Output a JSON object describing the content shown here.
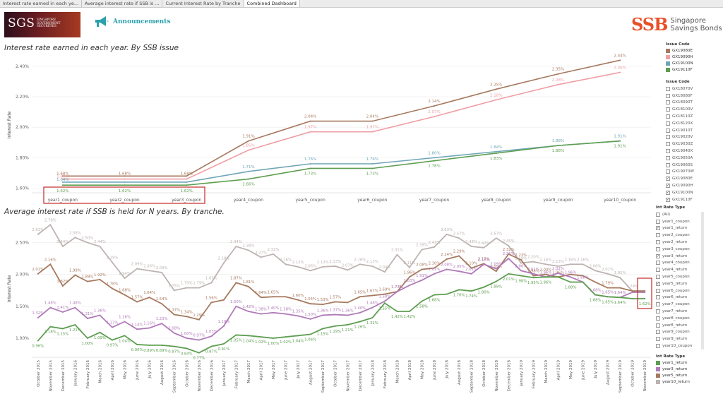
{
  "tabs": [
    "Interest rate earned in each ye...",
    "Average interest rate if SSB is ...",
    "Current Interest Rate by Tranche",
    "Combined Dashboard"
  ],
  "header": {
    "sgs_logo": "SGS",
    "sgs_sub": "SINGAPORE GOVERNMENT SECURITIES",
    "announcements": "Announcements",
    "ssb_mark": "SSB",
    "ssb_line1": "Singapore",
    "ssb_line2": "Savings Bonds"
  },
  "chart1": {
    "title": "Interest rate earned in each year. By SSB issue",
    "ylabel": "Interest Rate"
  },
  "chart2": {
    "title": "Average interest rate if SSB is held for N years. By tranche.",
    "ylabel": "Interest Rate"
  },
  "legend1": {
    "title": "Issue Code",
    "items": [
      {
        "label": "GX19080E",
        "color": "#a6795e"
      },
      {
        "label": "GX19090H",
        "color": "#ef9fa5"
      },
      {
        "label": "GX19100N",
        "color": "#6fa6b7"
      },
      {
        "label": "GX19110F",
        "color": "#5d9e50"
      }
    ]
  },
  "filter1": {
    "title": "Issue Code",
    "items": [
      {
        "label": "GX18070V",
        "checked": false
      },
      {
        "label": "GX18080F",
        "checked": false
      },
      {
        "label": "GX18090T",
        "checked": false
      },
      {
        "label": "GX18100V",
        "checked": false
      },
      {
        "label": "GX18110Z",
        "checked": false
      },
      {
        "label": "GX18120X",
        "checked": false
      },
      {
        "label": "GX19010T",
        "checked": false
      },
      {
        "label": "GX19020V",
        "checked": false
      },
      {
        "label": "GX19030Z",
        "checked": false
      },
      {
        "label": "GX19040X",
        "checked": false
      },
      {
        "label": "GX19050A",
        "checked": false
      },
      {
        "label": "GX19060S",
        "checked": false
      },
      {
        "label": "GX19070W",
        "checked": false
      },
      {
        "label": "GX19080E",
        "checked": true
      },
      {
        "label": "GX19090H",
        "checked": true
      },
      {
        "label": "GX19100N",
        "checked": true
      },
      {
        "label": "GX19110F",
        "checked": true
      }
    ]
  },
  "filter2": {
    "title": "Int Rate Type",
    "items": [
      {
        "label": "(All)",
        "checked": false
      },
      {
        "label": "year1_coupon",
        "checked": false
      },
      {
        "label": "year1_return",
        "checked": true
      },
      {
        "label": "year2_coupon",
        "checked": false
      },
      {
        "label": "year2_return",
        "checked": false
      },
      {
        "label": "year3_coupon",
        "checked": false
      },
      {
        "label": "year3_return",
        "checked": true
      },
      {
        "label": "year4_coupon",
        "checked": false
      },
      {
        "label": "year4_return",
        "checked": false
      },
      {
        "label": "year5_coupon",
        "checked": false
      },
      {
        "label": "year5_return",
        "checked": true
      },
      {
        "label": "year6_coupon",
        "checked": false
      },
      {
        "label": "year6_return",
        "checked": false
      },
      {
        "label": "year7_coupon",
        "checked": false
      },
      {
        "label": "year7_return",
        "checked": false
      },
      {
        "label": "year8_coupon",
        "checked": false
      },
      {
        "label": "year8_return",
        "checked": false
      },
      {
        "label": "year9_coupon",
        "checked": false
      },
      {
        "label": "year9_return",
        "checked": false
      },
      {
        "label": "year10_coupon",
        "checked": false
      }
    ]
  },
  "legend2": {
    "title": "Int Rate Type",
    "items": [
      {
        "label": "year1_return",
        "color": "#5d9e50"
      },
      {
        "label": "year3_return",
        "color": "#b07ab8"
      },
      {
        "label": "year5_return",
        "color": "#a6795e"
      },
      {
        "label": "year10_return",
        "color": "#bdb3b1"
      }
    ]
  },
  "chart_data": [
    {
      "type": "line",
      "title": "Interest rate earned in each year. By SSB issue",
      "ylabel": "Interest Rate",
      "ylim": [
        1.57,
        2.46
      ],
      "yticks": [
        "1.60%",
        "1.80%",
        "2.00%",
        "2.20%",
        "2.40%"
      ],
      "ytick_values": [
        1.6,
        1.8,
        2.0,
        2.2,
        2.4
      ],
      "categories": [
        "year1_coupon",
        "year2_coupon",
        "year3_coupon",
        "year4_coupon",
        "year5_coupon",
        "year6_coupon",
        "year7_coupon",
        "year8_coupon",
        "year9_coupon",
        "year10_coupon"
      ],
      "series": [
        {
          "name": "GX19080E",
          "color": "#a6795e",
          "values": [
            1.68,
            1.68,
            1.68,
            1.91,
            2.04,
            2.04,
            2.14,
            2.25,
            2.35,
            2.44
          ],
          "labels": [
            "1.68%",
            "1.68%",
            "1.68%",
            "1.91%",
            "2.04%",
            "2.04%",
            "2.14%",
            "2.25%",
            "2.35%",
            "2.44%"
          ]
        },
        {
          "name": "GX19090H",
          "color": "#ef9fa5",
          "values": [
            1.66,
            1.66,
            1.66,
            1.85,
            1.97,
            1.97,
            2.07,
            2.18,
            2.28,
            2.36
          ],
          "labels": [
            "1.66%",
            "",
            "",
            "1.85%",
            "1.97%",
            "1.97%",
            "2.07%",
            "2.18%",
            "2.28%",
            "2.36%"
          ]
        },
        {
          "name": "GX19100N",
          "color": "#6fa6b7",
          "values": [
            1.64,
            1.64,
            1.64,
            1.71,
            1.76,
            1.76,
            1.8,
            1.84,
            1.88,
            1.91
          ],
          "labels": [
            "1.64%",
            "",
            "",
            "1.71%",
            "1.76%",
            "1.76%",
            "1.80%",
            "1.84%",
            "1.88%",
            "1.91%"
          ]
        },
        {
          "name": "GX19110F",
          "color": "#5d9e50",
          "values": [
            1.62,
            1.62,
            1.62,
            1.66,
            1.73,
            1.73,
            1.78,
            1.83,
            1.88,
            1.91
          ],
          "labels": [
            "1.62%",
            "1.62%",
            "1.62%",
            "1.66%",
            "1.73%",
            "1.73%",
            "1.78%",
            "1.83%",
            "1.88%",
            "1.91%"
          ]
        }
      ]
    },
    {
      "type": "line",
      "title": "Average interest rate if SSB is held for N years. By tranche.",
      "ylabel": "Interest Rate",
      "ylim": [
        0.7,
        2.85
      ],
      "yticks": [
        "1.00%",
        "1.50%",
        "2.00%",
        "2.50%"
      ],
      "ytick_values": [
        1.0,
        1.5,
        2.0,
        2.5
      ],
      "categories": [
        "October 2015",
        "November 2015",
        "December 2015",
        "January 2016",
        "February 2016",
        "March 2016",
        "April 2016",
        "May 2016",
        "June 2016",
        "July 2016",
        "August 2016",
        "September 2016",
        "October 2016",
        "November 2016",
        "December 2016",
        "January 2017",
        "February 2017",
        "March 2017",
        "April 2017",
        "May 2017",
        "June 2017",
        "July 2017",
        "August 2017",
        "September 2017",
        "October 2017",
        "November 2017",
        "December 2017",
        "January 2018",
        "February 2018",
        "March 2018",
        "April 2018",
        "May 2018",
        "June 2018",
        "July 2018",
        "August 2018",
        "September 2018",
        "October 2018",
        "November 2018",
        "December 2018",
        "January 2019",
        "February 2019",
        "March 2019",
        "April 2019",
        "May 2019",
        "June 2019",
        "July 2019",
        "August 2019",
        "September 2019",
        "October 2019",
        "November 2019"
      ],
      "series": [
        {
          "name": "year10_return",
          "color": "#bdb3b1",
          "values": [
            2.63,
            2.78,
            2.44,
            2.58,
            2.5,
            2.44,
            2.19,
            1.94,
            2.09,
            2.06,
            2.03,
            1.75,
            1.79,
            1.79,
            1.87,
            2.18,
            2.44,
            2.38,
            2.27,
            2.32,
            2.16,
            2.12,
            2.06,
            2.12,
            2.13,
            2.07,
            2.16,
            2.13,
            2.04,
            2.31,
            2.11,
            2.39,
            2.43,
            2.63,
            2.57,
            2.44,
            2.42,
            2.57,
            2.45,
            2.18,
            2.2,
            2.16,
            2.13,
            2.16,
            2.16,
            2.06,
            2.01,
            1.95,
            1.74,
            1.74
          ],
          "labels": [
            "2.63%",
            "2.78%",
            "2.44%",
            "2.58%",
            "2.50%",
            "2.44%",
            "2.19%",
            "1.94%",
            "2.09%",
            "2.06%",
            "2.03%",
            "1.75%",
            "1.79%",
            "1.79%",
            "1.87%",
            "2.18%",
            "2.44%",
            "2.38%",
            "2.27%",
            "2.32%",
            "2.16%",
            "2.12%",
            "2.06%",
            "2.12%",
            "2.13%",
            "2.07%",
            "2.16%",
            "2.13%",
            "2.04%",
            "2.31%",
            "2.11%",
            "2.39%",
            "2.43%",
            "2.63%",
            "2.57%",
            "2.44%",
            "2.42%",
            "2.57%",
            "2.45%",
            "2.18%",
            "2.20%",
            "2.16%",
            "2.13%",
            "2.16%",
            "2.16%",
            "2.06%",
            "2.01%",
            "1.95%",
            "1.74%",
            ""
          ]
        },
        {
          "name": "year5_return",
          "color": "#a6795e",
          "values": [
            2.01,
            2.16,
            1.82,
            1.99,
            1.89,
            1.92,
            1.78,
            1.68,
            1.57,
            1.64,
            1.54,
            1.37,
            1.34,
            1.29,
            1.56,
            1.6,
            1.87,
            1.81,
            1.64,
            1.65,
            1.65,
            1.6,
            1.54,
            1.53,
            1.57,
            1.56,
            1.65,
            1.67,
            1.69,
            1.73,
            1.96,
            2.08,
            2.1,
            2.24,
            2.29,
            2.1,
            2.17,
            2.05,
            2.32,
            2.23,
            1.98,
            2.0,
            1.96,
            2.0,
            1.98,
            1.88,
            1.79,
            1.79,
            1.74,
            1.74
          ],
          "labels": [
            "2.01%",
            "2.16%",
            "1.82%",
            "1.99%",
            "1.89%",
            "1.92%",
            "1.78%",
            "1.68%",
            "1.57%",
            "1.64%",
            "1.54%",
            "1.37%",
            "1.34%",
            "1.29%",
            "1.56%",
            "",
            "1.87%",
            "1.81%",
            "1.64%",
            "1.65%",
            "",
            "1.60%",
            "1.54%",
            "1.53%",
            "1.57%",
            "",
            "1.65%",
            "1.67%",
            "1.69%",
            "1.73%",
            "1.96%",
            "2.08%",
            "2.10%",
            "2.24%",
            "2.29%",
            "2.10%",
            "2.17%",
            "2.05%",
            "2.32%",
            "2.23%",
            "1.98%",
            "2.00%",
            "1.96%",
            "",
            "",
            "",
            "1.79%",
            "",
            "",
            ""
          ]
        },
        {
          "name": "year3_return",
          "color": "#b07ab8",
          "values": [
            1.32,
            1.48,
            1.41,
            1.48,
            1.31,
            1.36,
            1.17,
            1.26,
            1.14,
            1.16,
            1.23,
            1.08,
            1.0,
            0.97,
            1.03,
            1.19,
            1.5,
            1.42,
            1.38,
            1.4,
            1.38,
            1.35,
            1.3,
            1.36,
            1.37,
            1.36,
            1.4,
            1.48,
            1.58,
            1.73,
            1.83,
            1.91,
            2.01,
            2.08,
            2.05,
            2.01,
            2.16,
            2.09,
            2.25,
            2.06,
            2.01,
            1.96,
            2.02,
            1.96,
            1.88,
            1.68,
            1.65,
            1.64,
            1.72,
            1.72
          ],
          "labels": [
            "1.32%",
            "1.48%",
            "1.41%",
            "1.48%",
            "1.31%",
            "1.36%",
            "1.17%",
            "1.26%",
            "1.14%",
            "1.16%",
            "1.23%",
            "1.08%",
            "1.00%",
            "0.97%",
            "1.03%",
            "1.19%",
            "1.50%",
            "1.42%",
            "1.38%",
            "1.40%",
            "1.38%",
            "1.35%",
            "1.30%",
            "1.36%",
            "1.37%",
            "1.36%",
            "1.40%",
            "1.48%",
            "1.58%",
            "1.73%",
            "1.83%",
            "1.91%",
            "2.01%",
            "2.08%",
            "2.05%",
            "2.01%",
            "2.16%",
            "2.09%",
            "2.25%",
            "2.06%",
            "2.01%",
            "1.96%",
            "2.02%",
            "1.96%",
            "1.88%",
            "1.68%",
            "1.65%",
            "1.64%",
            "",
            ""
          ]
        },
        {
          "name": "year1_return",
          "color": "#5d9e50",
          "values": [
            0.96,
            1.18,
            1.15,
            1.21,
            1.0,
            1.09,
            0.97,
            1.04,
            0.9,
            0.89,
            0.89,
            0.87,
            0.84,
            0.77,
            0.87,
            0.91,
            1.05,
            1.04,
            1.02,
            1.0,
            1.02,
            1.04,
            1.06,
            1.15,
            1.19,
            1.21,
            1.26,
            1.32,
            1.55,
            1.42,
            1.42,
            1.58,
            1.68,
            1.69,
            1.76,
            1.74,
            1.8,
            1.89,
            2.01,
            1.98,
            1.95,
            1.96,
            1.96,
            1.88,
            1.88,
            1.68,
            1.65,
            1.64,
            1.62,
            1.62
          ],
          "labels": [
            "0.96%",
            "1.18%",
            "1.15%",
            "1.21%",
            "1.00%",
            "1.09%",
            "0.97%",
            "1.04%",
            "0.90%",
            "0.89%",
            "0.89%",
            "0.87%",
            "0.84%",
            "0.77%",
            "0.87%",
            "0.91%",
            "1.05%",
            "1.04%",
            "1.02%",
            "1.00%",
            "1.02%",
            "1.04%",
            "1.06%",
            "1.15%",
            "1.19%",
            "1.21%",
            "1.26%",
            "1.32%",
            "1.55%",
            "1.42%",
            "1.42%",
            "1.58%",
            "1.68%",
            "",
            "1.76%",
            "1.74%",
            "1.80%",
            "1.89%",
            "2.01%",
            "1.98%",
            "1.95%",
            "1.96%",
            "",
            "1.88%",
            "",
            "1.68%",
            "1.65%",
            "1.64%",
            "",
            "1.62%"
          ]
        }
      ]
    }
  ]
}
